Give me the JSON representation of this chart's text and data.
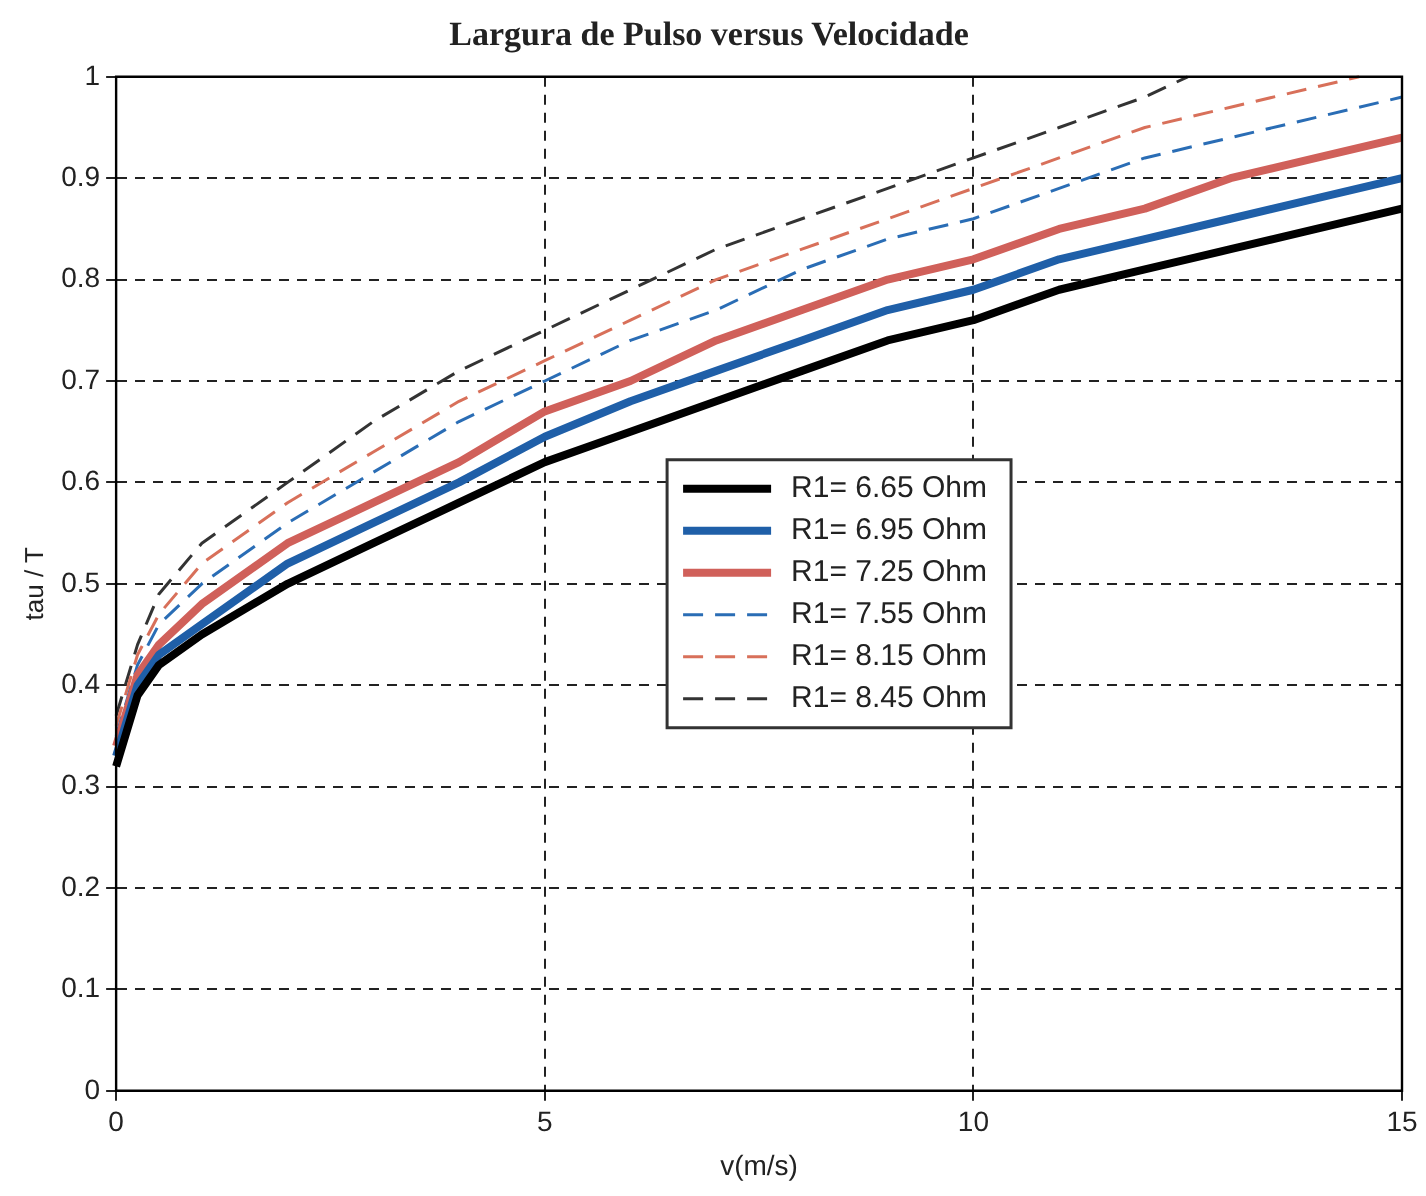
{
  "chart_data": {
    "type": "line",
    "title": "Largura de Pulso versus Velocidade",
    "xlabel": "v(m/s)",
    "ylabel": "tau / T",
    "xlim": [
      0,
      15
    ],
    "xticks": [
      0,
      5,
      10,
      15
    ],
    "ylim": [
      0,
      1
    ],
    "yticks": [
      0,
      0.1,
      0.2,
      0.3,
      0.4,
      0.5,
      0.6,
      0.7,
      0.8,
      0.9,
      1
    ],
    "grid": true,
    "legend": "center",
    "marker": "none",
    "x": [
      0,
      0.25,
      0.5,
      1,
      2,
      3,
      4,
      5,
      6,
      7,
      8,
      9,
      10,
      11,
      12,
      13,
      14,
      15
    ],
    "series": [
      {
        "name": "R1= 6.65 Ohm",
        "color": "#000000",
        "line_style": "solid",
        "values": [
          0.32,
          0.39,
          0.42,
          0.45,
          0.5,
          0.54,
          0.58,
          0.62,
          0.65,
          0.68,
          0.71,
          0.74,
          0.76,
          0.79,
          0.81,
          0.83,
          0.85,
          0.87
        ]
      },
      {
        "name": "R1= 6.95 Ohm",
        "color": "#1f5fa8",
        "line_style": "solid",
        "values": [
          0.33,
          0.4,
          0.43,
          0.46,
          0.52,
          0.56,
          0.6,
          0.645,
          0.68,
          0.71,
          0.74,
          0.77,
          0.79,
          0.82,
          0.84,
          0.86,
          0.88,
          0.9
        ]
      },
      {
        "name": "R1= 7.25 Ohm",
        "color": "#d0605a",
        "line_style": "solid",
        "values": [
          0.34,
          0.41,
          0.44,
          0.48,
          0.54,
          0.58,
          0.62,
          0.67,
          0.7,
          0.74,
          0.77,
          0.8,
          0.82,
          0.85,
          0.87,
          0.9,
          0.92,
          0.94
        ]
      },
      {
        "name": "R1= 7.55 Ohm",
        "color": "#2a6db5",
        "line_style": "dashed",
        "values": [
          0.35,
          0.42,
          0.46,
          0.5,
          0.56,
          0.61,
          0.66,
          0.7,
          0.74,
          0.77,
          0.81,
          0.84,
          0.86,
          0.89,
          0.92,
          0.94,
          0.96,
          0.98
        ]
      },
      {
        "name": "R1= 8.15 Ohm",
        "color": "#d8705a",
        "line_style": "dashed",
        "x": [
          0,
          0.25,
          0.5,
          1,
          2,
          3,
          4,
          5,
          6,
          7,
          8,
          9,
          10,
          11,
          12,
          13,
          14,
          14.5
        ],
        "values": [
          0.36,
          0.43,
          0.47,
          0.52,
          0.58,
          0.63,
          0.68,
          0.72,
          0.76,
          0.8,
          0.83,
          0.86,
          0.89,
          0.92,
          0.95,
          0.97,
          0.99,
          1.0
        ]
      },
      {
        "name": "R1= 8.45 Ohm",
        "color": "#333333",
        "line_style": "dashed",
        "x": [
          0,
          0.25,
          0.5,
          1,
          2,
          3,
          4,
          5,
          6,
          7,
          8,
          9,
          10,
          11,
          12,
          12.5
        ],
        "values": [
          0.37,
          0.44,
          0.49,
          0.54,
          0.6,
          0.66,
          0.71,
          0.75,
          0.79,
          0.83,
          0.86,
          0.89,
          0.92,
          0.95,
          0.98,
          1.0
        ]
      }
    ]
  }
}
